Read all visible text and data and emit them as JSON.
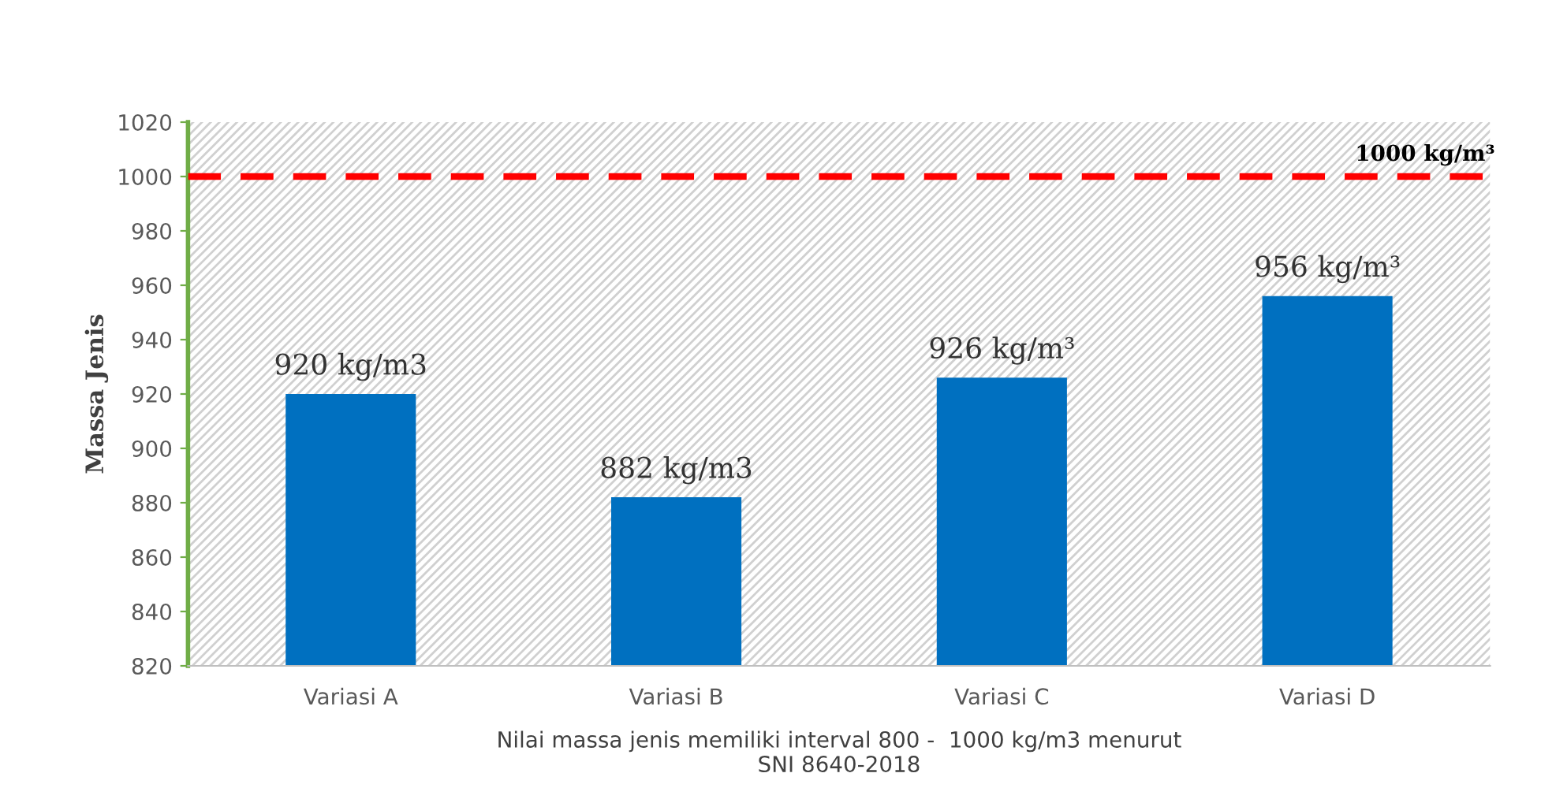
{
  "chart_data": {
    "type": "bar",
    "ylabel": "Massa Jenis",
    "xlabel": "Nilai massa jenis memiliki interval 800 -  1000 kg/m3 menurut\nSNI 8640-2018",
    "categories": [
      "Variasi A",
      "Variasi B",
      "Variasi C",
      "Variasi D"
    ],
    "values": [
      920,
      882,
      926,
      956
    ],
    "color": "#0070c0",
    "value_labels": [
      "920 kg/m3",
      "882 kg/m3",
      "926 kg/m³",
      "956 kg/m³"
    ],
    "ylim": [
      820,
      1020
    ],
    "yticks": [
      820,
      840,
      860,
      880,
      900,
      920,
      940,
      960,
      980,
      1000,
      1020
    ],
    "ref_lines": [
      {
        "axis": "y",
        "value": 1000,
        "label": "1000 kg/m³",
        "color": "#ff0000",
        "line_style": "dashed"
      }
    ],
    "grid": false,
    "legend": false
  }
}
